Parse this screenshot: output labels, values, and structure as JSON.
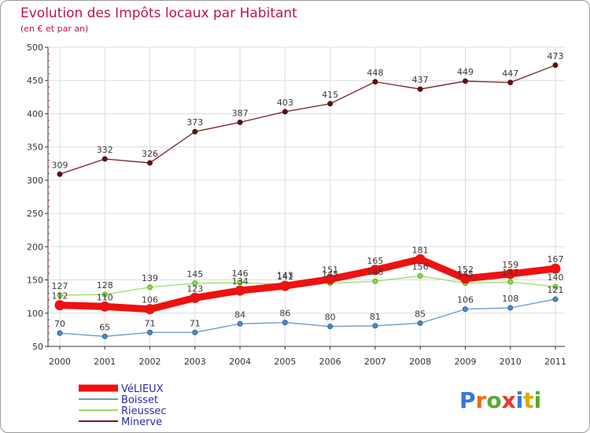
{
  "title": "Evolution des Impôts locaux par Habitant",
  "subtitle": "(en € et par an)",
  "logo_text": "Proxiti",
  "chart_data": {
    "type": "line",
    "title": "Evolution des Impôts locaux par Habitant",
    "subtitle": "(en € et par an)",
    "categories": [
      "2000",
      "2001",
      "2002",
      "2003",
      "2004",
      "2005",
      "2006",
      "2007",
      "2008",
      "2009",
      "2010",
      "2011"
    ],
    "ylim": [
      50,
      500
    ],
    "yticks": [
      50,
      100,
      150,
      200,
      250,
      300,
      350,
      400,
      450,
      500
    ],
    "grid": true,
    "legend_position": "bottom-left",
    "series": [
      {
        "name": "VéLIEUX",
        "color": "#ee1111",
        "values": [
          112,
          110,
          106,
          123,
          134,
          141,
          151,
          165,
          181,
          152,
          159,
          167
        ]
      },
      {
        "name": "Boisset",
        "color": "#6699cc",
        "values": [
          70,
          65,
          71,
          71,
          84,
          86,
          80,
          81,
          85,
          106,
          108,
          121
        ]
      },
      {
        "name": "Rieussec",
        "color": "#99dd66",
        "values": [
          127,
          128,
          139,
          145,
          146,
          143,
          145,
          148,
          156,
          145,
          147,
          140
        ]
      },
      {
        "name": "Minerve",
        "color": "#7a1e24",
        "values": [
          309,
          332,
          326,
          373,
          387,
          403,
          415,
          448,
          437,
          449,
          447,
          473
        ]
      }
    ]
  }
}
